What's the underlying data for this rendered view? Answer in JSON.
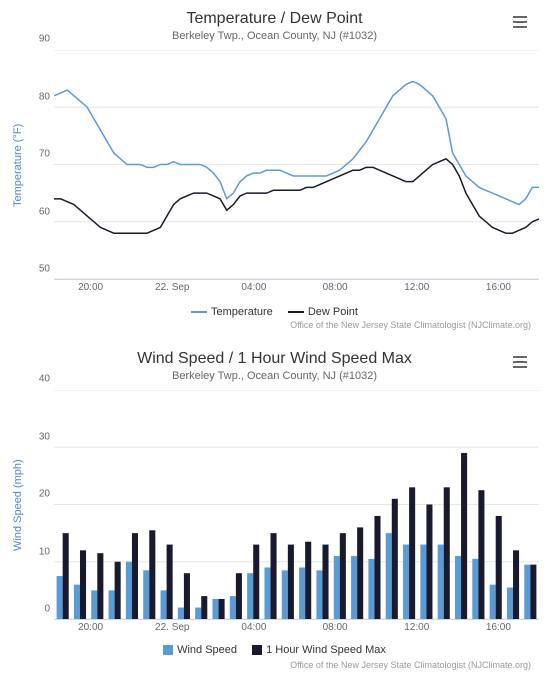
{
  "chart1": {
    "type": "line",
    "title": "Temperature / Dew Point",
    "subtitle": "Berkeley Twp., Ocean County, NJ (#1032)",
    "ylabel": "Temperature (°F)",
    "ylabel_color": "#4f87d1",
    "ylim": [
      50,
      90
    ],
    "yticks": [
      50,
      60,
      70,
      80,
      90
    ],
    "xticks": [
      "20:00",
      "22. Sep",
      "04:00",
      "08:00",
      "12:00",
      "16:00"
    ],
    "xtick_positions": [
      0.083,
      0.25,
      0.417,
      0.583,
      0.75,
      0.917
    ],
    "grid_color": "#e6e6e6",
    "background_color": "#ffffff",
    "series": [
      {
        "name": "Temperature",
        "color": "#5b9bd5",
        "width": 1.5,
        "values": [
          82,
          82.5,
          83,
          82,
          81,
          80,
          78,
          76,
          74,
          72,
          71,
          70,
          70,
          70,
          69.5,
          69.5,
          70,
          70,
          70.5,
          70,
          70,
          70,
          70,
          69.5,
          68.5,
          67,
          64,
          65,
          67,
          68,
          68.5,
          68.5,
          69,
          69,
          69,
          68.5,
          68,
          68,
          68,
          68,
          68,
          68,
          68.5,
          69,
          70,
          71,
          72.5,
          74,
          76,
          78,
          80,
          82,
          83,
          84,
          84.5,
          84,
          83,
          82,
          80,
          78,
          72,
          70,
          68,
          67,
          66,
          65.5,
          65,
          64.5,
          64,
          63.5,
          63,
          64,
          66,
          66
        ]
      },
      {
        "name": "Dew Point",
        "color": "#1a1a2e",
        "width": 1.5,
        "values": [
          64,
          64,
          63.5,
          63,
          62,
          61,
          60,
          59,
          58.5,
          58,
          58,
          58,
          58,
          58,
          58,
          58.5,
          59,
          61,
          63,
          64,
          64.5,
          65,
          65,
          65,
          64.5,
          64,
          62,
          63,
          64.5,
          65,
          65,
          65,
          65,
          65.5,
          65.5,
          65.5,
          65.5,
          65.5,
          66,
          66,
          66.5,
          67,
          67.5,
          68,
          68.5,
          69,
          69,
          69.5,
          69.5,
          69,
          68.5,
          68,
          67.5,
          67,
          67,
          68,
          69,
          70,
          70.5,
          71,
          70,
          68,
          65,
          63,
          61,
          60,
          59,
          58.5,
          58,
          58,
          58.5,
          59,
          60,
          60.5
        ]
      }
    ],
    "legend_items": [
      "Temperature",
      "Dew Point"
    ],
    "credits": "Office of the New Jersey State Climatologist (NJClimate.org)"
  },
  "chart2": {
    "type": "bar",
    "title": "Wind Speed / 1 Hour Wind Speed Max",
    "subtitle": "Berkeley Twp., Ocean County, NJ (#1032)",
    "ylabel": "Wind Speed (mph)",
    "ylabel_color": "#4f87d1",
    "ylim": [
      0,
      40
    ],
    "yticks": [
      0,
      10,
      20,
      30,
      40
    ],
    "xticks": [
      "20:00",
      "22. Sep",
      "04:00",
      "08:00",
      "12:00",
      "16:00"
    ],
    "xtick_positions": [
      0.083,
      0.25,
      0.417,
      0.583,
      0.75,
      0.917
    ],
    "grid_color": "#e6e6e6",
    "background_color": "#ffffff",
    "series": [
      {
        "name": "Wind Speed",
        "color": "#5b9bd5",
        "values": [
          7.5,
          6,
          5,
          5,
          10,
          8.5,
          5,
          2,
          2,
          3.5,
          4,
          8,
          9,
          8.5,
          9,
          8.5,
          11,
          11,
          10.5,
          15,
          13,
          13,
          13,
          11,
          10.5,
          6,
          5.5,
          9.5
        ]
      },
      {
        "name": "1 Hour Wind Speed Max",
        "color": "#1a1a2e",
        "values": [
          15,
          12,
          11.5,
          10,
          15,
          15.5,
          13,
          8,
          4,
          3.5,
          8,
          13,
          15,
          13,
          13.5,
          13,
          15,
          16,
          18,
          21,
          23,
          20,
          23,
          29,
          22.5,
          18,
          12,
          9.5
        ]
      }
    ],
    "legend_items": [
      "Wind Speed",
      "1 Hour Wind Speed Max"
    ],
    "credits": "Office of the New Jersey State Climatologist (NJClimate.org)"
  }
}
